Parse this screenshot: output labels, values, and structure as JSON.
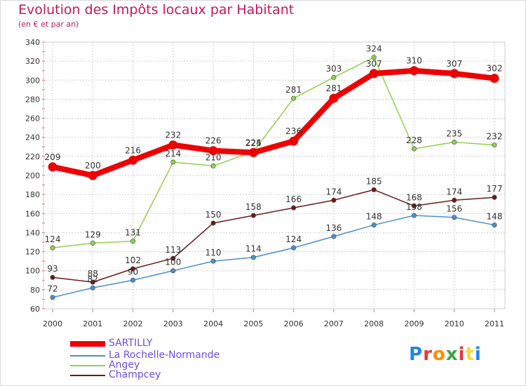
{
  "header": {
    "title": "Evolution des Impôts locaux par Habitant",
    "subtitle": "(en € et par an)"
  },
  "brand": {
    "logo_letters": [
      "P",
      "r",
      "o",
      "x",
      "i",
      "t",
      "i"
    ],
    "logo_colors": [
      "#1e88e5",
      "#e53935",
      "#fb8c00",
      "#43a047",
      "#e53935",
      "#fdd835",
      "#1e88e5"
    ]
  },
  "chart_data": {
    "type": "line",
    "title": "Evolution des Impôts locaux par Habitant",
    "subtitle": "(en € et par an)",
    "xlabel": "",
    "ylabel": "",
    "x": [
      "2000",
      "2001",
      "2002",
      "2003",
      "2004",
      "2005",
      "2006",
      "2007",
      "2008",
      "2009",
      "2010",
      "2011"
    ],
    "ylim": [
      60,
      340
    ],
    "yticks": [
      60,
      80,
      100,
      120,
      140,
      160,
      180,
      200,
      220,
      240,
      260,
      280,
      300,
      320,
      340
    ],
    "grid": true,
    "legend_position": "bottom-left",
    "series": [
      {
        "name": "SARTILLY",
        "color": "#ee0000",
        "emphasis": true,
        "values": [
          209,
          200,
          216,
          232,
          226,
          224,
          236,
          281,
          307,
          310,
          307,
          302
        ],
        "labels": [
          "209",
          "200",
          "216",
          "232",
          "226",
          "224",
          "236",
          "281",
          "307",
          "310",
          "307",
          "302"
        ]
      },
      {
        "name": "La Rochelle-Normande",
        "color": "#4d8fcc",
        "emphasis": false,
        "values": [
          72,
          82,
          90,
          100,
          110,
          114,
          124,
          136,
          148,
          158,
          156,
          148
        ],
        "labels": [
          "72",
          "82",
          "90",
          "100",
          "110",
          "114",
          "124",
          "136",
          "148",
          "158",
          "156",
          "148"
        ]
      },
      {
        "name": "Angey",
        "color": "#8fd14f",
        "emphasis": false,
        "values": [
          124,
          129,
          131,
          214,
          210,
          225,
          281,
          303,
          324,
          228,
          235,
          232
        ],
        "labels": [
          "124",
          "129",
          "131",
          "214",
          "210",
          "225",
          "281",
          "303",
          "324",
          "228",
          "235",
          "232"
        ]
      },
      {
        "name": "Champcey",
        "color": "#6b1a1a",
        "emphasis": false,
        "values": [
          93,
          88,
          102,
          113,
          150,
          158,
          166,
          174,
          185,
          168,
          174,
          177
        ],
        "labels": [
          "93",
          "88",
          "102",
          "113",
          "150",
          "158",
          "166",
          "174",
          "185",
          "168",
          "174",
          "177"
        ]
      }
    ]
  }
}
